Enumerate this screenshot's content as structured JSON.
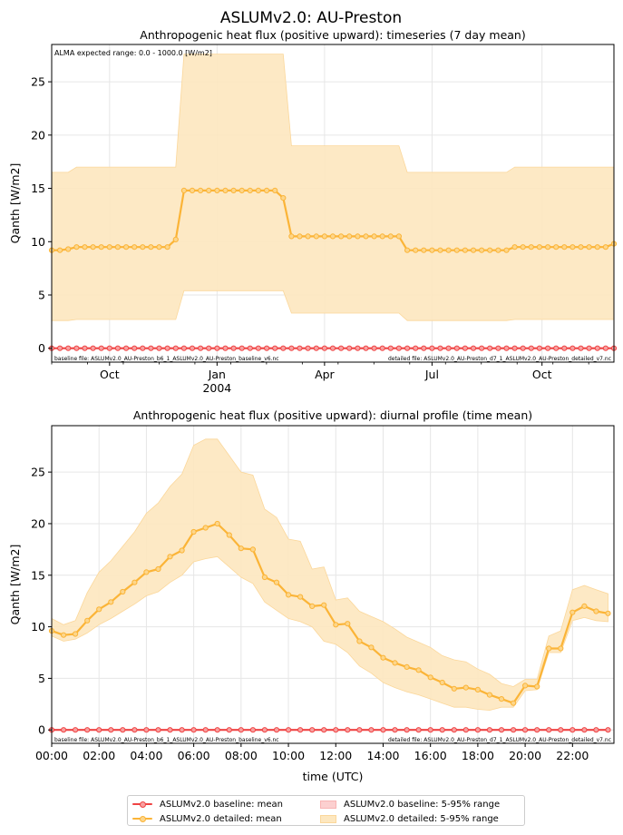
{
  "figure": {
    "suptitle": "ASLUMv2.0: AU-Preston"
  },
  "colors": {
    "baseline": "#ef4444",
    "baseline_fill": "#f8b4b4",
    "detailed": "#fbb437",
    "detailed_fill": "#fde7bf",
    "grid": "#e6e6e6"
  },
  "chart_data": [
    {
      "type": "line",
      "title": "Anthropogenic heat flux (positive upward): timeseries (7 day mean)",
      "xlabel": "",
      "ylabel": "Qanth [W/m2]",
      "ylim": [
        -1.3,
        28.5
      ],
      "yticks": [
        0,
        5,
        10,
        15,
        20,
        25
      ],
      "x_unit": "week index (weekly means, starting ~1 Aug 2003)",
      "xlim": [
        0,
        68
      ],
      "xticks": [
        {
          "x": 7,
          "label": "Oct"
        },
        {
          "x": 20,
          "label": "Jan"
        },
        {
          "x": 33,
          "label": "Apr"
        },
        {
          "x": 46,
          "label": "Jul"
        },
        {
          "x": 59.3,
          "label": "Oct"
        }
      ],
      "year_label": {
        "x": 20,
        "label": "2004"
      },
      "grid": true,
      "annotation_top_left": "ALMA expected range: 0.0 - 1000.0 [W/m2]",
      "baseline_file_text": "baseline file: ASLUMv2.0_AU-Preston_b6_1_ASLUMv2.0_AU-Preston_baseline_v6.nc",
      "detailed_file_text": "detailed file: ASLUMv2.0_AU-Preston_d7_1_ASLUMv2.0_AU-Preston_detailed_v7.nc",
      "series": [
        {
          "name": "ASLUMv2.0 baseline: mean",
          "x": [
            0,
            1,
            2,
            3,
            4,
            5,
            6,
            7,
            8,
            9,
            10,
            11,
            12,
            13,
            14,
            15,
            16,
            17,
            18,
            19,
            20,
            21,
            22,
            23,
            24,
            25,
            26,
            27,
            28,
            29,
            30,
            31,
            32,
            33,
            34,
            35,
            36,
            37,
            38,
            39,
            40,
            41,
            42,
            43,
            44,
            45,
            46,
            47,
            48,
            49,
            50,
            51,
            52,
            53,
            54,
            55,
            56,
            57,
            58,
            59,
            60,
            61,
            62,
            63,
            64,
            65,
            66,
            67,
            68
          ],
          "values": [
            0,
            0,
            0,
            0,
            0,
            0,
            0,
            0,
            0,
            0,
            0,
            0,
            0,
            0,
            0,
            0,
            0,
            0,
            0,
            0,
            0,
            0,
            0,
            0,
            0,
            0,
            0,
            0,
            0,
            0,
            0,
            0,
            0,
            0,
            0,
            0,
            0,
            0,
            0,
            0,
            0,
            0,
            0,
            0,
            0,
            0,
            0,
            0,
            0,
            0,
            0,
            0,
            0,
            0,
            0,
            0,
            0,
            0,
            0,
            0,
            0,
            0,
            0,
            0,
            0,
            0,
            0,
            0,
            0
          ]
        },
        {
          "name": "ASLUMv2.0 detailed: mean",
          "x": [
            0,
            1,
            2,
            3,
            4,
            5,
            6,
            7,
            8,
            9,
            10,
            11,
            12,
            13,
            14,
            15,
            16,
            17,
            18,
            19,
            20,
            21,
            22,
            23,
            24,
            25,
            26,
            27,
            28,
            29,
            30,
            31,
            32,
            33,
            34,
            35,
            36,
            37,
            38,
            39,
            40,
            41,
            42,
            43,
            44,
            45,
            46,
            47,
            48,
            49,
            50,
            51,
            52,
            53,
            54,
            55,
            56,
            57,
            58,
            59,
            60,
            61,
            62,
            63,
            64,
            65,
            66,
            67,
            68
          ],
          "values": [
            9.2,
            9.2,
            9.3,
            9.5,
            9.5,
            9.5,
            9.5,
            9.5,
            9.5,
            9.5,
            9.5,
            9.5,
            9.5,
            9.5,
            9.5,
            10.2,
            14.8,
            14.8,
            14.8,
            14.8,
            14.8,
            14.8,
            14.8,
            14.8,
            14.8,
            14.8,
            14.8,
            14.8,
            14.1,
            10.5,
            10.5,
            10.5,
            10.5,
            10.5,
            10.5,
            10.5,
            10.5,
            10.5,
            10.5,
            10.5,
            10.5,
            10.5,
            10.5,
            9.2,
            9.2,
            9.2,
            9.2,
            9.2,
            9.2,
            9.2,
            9.2,
            9.2,
            9.2,
            9.2,
            9.2,
            9.2,
            9.5,
            9.5,
            9.5,
            9.5,
            9.5,
            9.5,
            9.5,
            9.5,
            9.5,
            9.5,
            9.5,
            9.5,
            9.8
          ]
        }
      ],
      "ranges": [
        {
          "name": "ASLUMv2.0 detailed: 5-95% range",
          "x": [
            0,
            2,
            3,
            15,
            16,
            28,
            29,
            42,
            43,
            55,
            56,
            68
          ],
          "low": [
            2.6,
            2.6,
            2.7,
            2.7,
            5.4,
            5.4,
            3.3,
            3.3,
            2.6,
            2.6,
            2.7,
            2.7
          ],
          "high": [
            16.5,
            16.5,
            17.0,
            17.0,
            27.6,
            27.6,
            19.0,
            19.0,
            16.5,
            16.5,
            17.0,
            17.0
          ]
        }
      ]
    },
    {
      "type": "line",
      "title": "Anthropogenic heat flux (positive upward): diurnal profile (time mean)",
      "xlabel": "time (UTC)",
      "ylabel": "Qanth [W/m2]",
      "ylim": [
        -1.3,
        29.5
      ],
      "yticks": [
        0,
        5,
        10,
        15,
        20,
        25
      ],
      "xlim": [
        0,
        23.75
      ],
      "xticks": [
        "00:00",
        "02:00",
        "04:00",
        "06:00",
        "08:00",
        "10:00",
        "12:00",
        "14:00",
        "16:00",
        "18:00",
        "20:00",
        "22:00"
      ],
      "grid": true,
      "baseline_file_text": "baseline file: ASLUMv2.0_AU-Preston_b6_1_ASLUMv2.0_AU-Preston_baseline_v6.nc",
      "detailed_file_text": "detailed file: ASLUMv2.0_AU-Preston_d7_1_ASLUMv2.0_AU-Preston_detailed_v7.nc",
      "x": [
        0,
        0.5,
        1,
        1.5,
        2,
        2.5,
        3,
        3.5,
        4,
        4.5,
        5,
        5.5,
        6,
        6.5,
        7,
        7.5,
        8,
        8.5,
        9,
        9.5,
        10,
        10.5,
        11,
        11.5,
        12,
        12.5,
        13,
        13.5,
        14,
        14.5,
        15,
        15.5,
        16,
        16.5,
        17,
        17.5,
        18,
        18.5,
        19,
        19.5,
        20,
        20.5,
        21,
        21.5,
        22,
        22.5,
        23,
        23.5
      ],
      "series": [
        {
          "name": "ASLUMv2.0 baseline: mean",
          "values": [
            0,
            0,
            0,
            0,
            0,
            0,
            0,
            0,
            0,
            0,
            0,
            0,
            0,
            0,
            0,
            0,
            0,
            0,
            0,
            0,
            0,
            0,
            0,
            0,
            0,
            0,
            0,
            0,
            0,
            0,
            0,
            0,
            0,
            0,
            0,
            0,
            0,
            0,
            0,
            0,
            0,
            0,
            0,
            0,
            0,
            0,
            0,
            0
          ]
        },
        {
          "name": "ASLUMv2.0 detailed: mean",
          "values": [
            9.6,
            9.2,
            9.3,
            10.6,
            11.7,
            12.4,
            13.4,
            14.3,
            15.3,
            15.6,
            16.8,
            17.4,
            19.2,
            19.6,
            20.0,
            18.9,
            17.6,
            17.5,
            14.8,
            14.3,
            13.1,
            12.9,
            12.0,
            12.1,
            10.2,
            10.3,
            8.6,
            8.0,
            7.0,
            6.5,
            6.1,
            5.8,
            5.1,
            4.6,
            4.0,
            4.1,
            3.9,
            3.4,
            3.0,
            2.6,
            4.3,
            4.2,
            7.9,
            7.9,
            11.4,
            12.0,
            11.5,
            11.3
          ]
        }
      ],
      "ranges": [
        {
          "name": "ASLUMv2.0 detailed: 5-95% range",
          "low": [
            9.1,
            8.6,
            8.8,
            9.4,
            10.2,
            10.8,
            11.5,
            12.2,
            13.0,
            13.4,
            14.3,
            15.0,
            16.3,
            16.6,
            16.8,
            15.8,
            14.8,
            14.2,
            12.4,
            11.6,
            10.8,
            10.5,
            10.0,
            8.6,
            8.3,
            7.5,
            6.2,
            5.5,
            4.6,
            4.1,
            3.7,
            3.4,
            3.0,
            2.6,
            2.2,
            2.2,
            2.0,
            1.9,
            2.2,
            2.2,
            3.8,
            3.9,
            7.5,
            7.5,
            10.6,
            10.9,
            10.6,
            10.5
          ],
          "high": [
            10.8,
            10.2,
            10.6,
            13.3,
            15.3,
            16.4,
            17.8,
            19.2,
            21.0,
            22.0,
            23.6,
            24.8,
            27.6,
            28.2,
            28.2,
            26.6,
            25.0,
            24.7,
            21.4,
            20.6,
            18.5,
            18.3,
            15.6,
            15.8,
            12.6,
            12.8,
            11.5,
            11.0,
            10.5,
            9.8,
            9.0,
            8.5,
            8.0,
            7.2,
            6.8,
            6.6,
            5.9,
            5.4,
            4.5,
            4.2,
            4.9,
            4.9,
            9.1,
            9.6,
            13.6,
            14.0,
            13.6,
            13.2
          ]
        }
      ]
    }
  ],
  "legend": {
    "items": [
      {
        "label": "ASLUMv2.0 baseline: mean",
        "kind": "line",
        "color": "#ef4444"
      },
      {
        "label": "ASLUMv2.0 detailed: mean",
        "kind": "line",
        "color": "#fbb437"
      },
      {
        "label": "ASLUMv2.0 baseline: 5-95% range",
        "kind": "patch",
        "color": "#f8b4b4"
      },
      {
        "label": "ASLUMv2.0 detailed: 5-95% range",
        "kind": "patch",
        "color": "#fde7bf"
      }
    ]
  }
}
